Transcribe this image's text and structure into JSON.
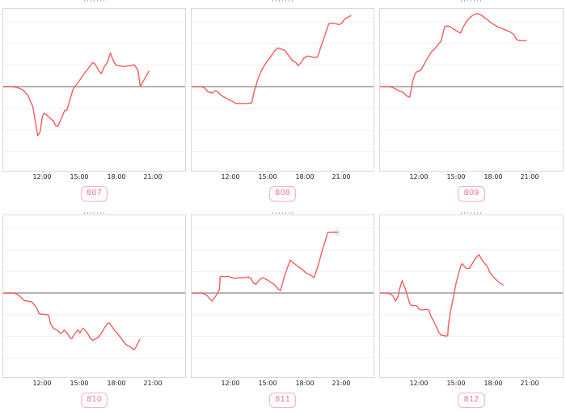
{
  "axis": {
    "tick_labels": [
      "12:00",
      "15:00",
      "18:00",
      "21:00"
    ],
    "tick_hours": [
      12,
      15,
      18,
      21
    ]
  },
  "colors": {
    "line": "#f45b5b",
    "zero_line": "#9a9a9a",
    "grid": "#f0f0f0",
    "border": "#d9d9d9",
    "badge_border": "#f8afc8",
    "badge_text": "#ee7ba2",
    "end_marker": "#ececec",
    "tick_text": "#222222"
  },
  "chart_data": [
    {
      "type": "line",
      "name": "807",
      "x_range_hours": [
        9,
        23.9
      ],
      "x_ticks": [
        "12:00",
        "15:00",
        "18:00",
        "21:00"
      ],
      "y_unit": "relative (pct of plot height vs zero baseline)",
      "baseline": 0,
      "grid": true,
      "points": [
        [
          9.0,
          0
        ],
        [
          9.7,
          0
        ],
        [
          10.1,
          -0.5
        ],
        [
          10.6,
          -2
        ],
        [
          11.0,
          -5.5
        ],
        [
          11.4,
          -12.4
        ],
        [
          11.8,
          -30.3
        ],
        [
          12.0,
          -27.9
        ],
        [
          12.2,
          -17.9
        ],
        [
          12.35,
          -16.4
        ],
        [
          12.6,
          -17.9
        ],
        [
          12.8,
          -19.4
        ],
        [
          13.1,
          -21.4
        ],
        [
          13.3,
          -24.4
        ],
        [
          13.45,
          -24.4
        ],
        [
          13.7,
          -20.4
        ],
        [
          14.0,
          -14.9
        ],
        [
          14.2,
          -14.4
        ],
        [
          14.7,
          -1.5
        ],
        [
          15.2,
          3.5
        ],
        [
          15.6,
          8
        ],
        [
          16.0,
          11.9
        ],
        [
          16.3,
          14.9
        ],
        [
          16.5,
          13.9
        ],
        [
          16.8,
          10
        ],
        [
          17.0,
          8
        ],
        [
          17.25,
          12.4
        ],
        [
          17.5,
          14.9
        ],
        [
          17.75,
          20.9
        ],
        [
          18.0,
          15.9
        ],
        [
          18.2,
          13.4
        ],
        [
          18.8,
          12.4
        ],
        [
          19.3,
          12.9
        ],
        [
          19.7,
          13.4
        ],
        [
          20.0,
          10.4
        ],
        [
          20.2,
          0
        ],
        [
          20.9,
          9.5
        ]
      ]
    },
    {
      "type": "line",
      "name": "808",
      "x_range_hours": [
        9,
        23.9
      ],
      "x_ticks": [
        "12:00",
        "15:00",
        "18:00",
        "21:00"
      ],
      "y_unit": "relative (pct of plot height vs zero baseline)",
      "baseline": 0,
      "grid": true,
      "points": [
        [
          9.0,
          0
        ],
        [
          9.7,
          0
        ],
        [
          10.0,
          -0.5
        ],
        [
          10.3,
          -3
        ],
        [
          10.65,
          -4
        ],
        [
          10.9,
          -2.5
        ],
        [
          11.1,
          -3
        ],
        [
          11.4,
          -5.5
        ],
        [
          11.9,
          -7.5
        ],
        [
          12.3,
          -9
        ],
        [
          12.6,
          -10.4
        ],
        [
          13.1,
          -10.4
        ],
        [
          13.6,
          -10.4
        ],
        [
          13.9,
          -10
        ],
        [
          14.1,
          -3
        ],
        [
          14.4,
          4.5
        ],
        [
          14.7,
          10
        ],
        [
          15.05,
          14.4
        ],
        [
          15.4,
          17.9
        ],
        [
          15.8,
          22.4
        ],
        [
          16.05,
          23.9
        ],
        [
          16.25,
          23.4
        ],
        [
          16.6,
          22.4
        ],
        [
          16.9,
          19.4
        ],
        [
          17.2,
          16.4
        ],
        [
          17.5,
          14.9
        ],
        [
          17.7,
          12.9
        ],
        [
          17.95,
          14.9
        ],
        [
          18.2,
          17.9
        ],
        [
          18.5,
          18.9
        ],
        [
          18.8,
          18.4
        ],
        [
          19.1,
          17.9
        ],
        [
          19.3,
          18.4
        ],
        [
          19.55,
          24.4
        ],
        [
          19.85,
          30.8
        ],
        [
          20.2,
          38.8
        ],
        [
          20.45,
          39.3
        ],
        [
          20.8,
          38.8
        ],
        [
          21.05,
          38.3
        ],
        [
          21.3,
          39.3
        ],
        [
          21.5,
          41.8
        ],
        [
          22.0,
          43.8
        ]
      ]
    },
    {
      "type": "line",
      "name": "809",
      "x_range_hours": [
        9,
        23.9
      ],
      "x_ticks": [
        "12:00",
        "15:00",
        "18:00",
        "21:00"
      ],
      "y_unit": "relative (pct of plot height vs zero baseline)",
      "baseline": 0,
      "grid": true,
      "points": [
        [
          9.0,
          0
        ],
        [
          9.7,
          0
        ],
        [
          10.0,
          -0.5
        ],
        [
          10.3,
          -1.7
        ],
        [
          10.6,
          -2.7
        ],
        [
          10.9,
          -3.8
        ],
        [
          11.2,
          -6
        ],
        [
          11.4,
          -6.5
        ],
        [
          11.65,
          3.5
        ],
        [
          11.85,
          8.1
        ],
        [
          12.0,
          9.3
        ],
        [
          12.25,
          9.8
        ],
        [
          12.4,
          11.4
        ],
        [
          12.85,
          17.6
        ],
        [
          13.2,
          21.7
        ],
        [
          13.4,
          23
        ],
        [
          13.75,
          26.4
        ],
        [
          13.95,
          28
        ],
        [
          14.25,
          37
        ],
        [
          14.45,
          37.5
        ],
        [
          14.7,
          37
        ],
        [
          14.9,
          36
        ],
        [
          15.15,
          34.7
        ],
        [
          15.4,
          33.7
        ],
        [
          15.55,
          33
        ],
        [
          15.8,
          37.5
        ],
        [
          16.15,
          41.6
        ],
        [
          16.45,
          43.6
        ],
        [
          16.7,
          44.8
        ],
        [
          16.95,
          45.1
        ],
        [
          17.2,
          44.4
        ],
        [
          17.45,
          42.9
        ],
        [
          17.75,
          41.3
        ],
        [
          17.95,
          39.9
        ],
        [
          18.2,
          38.6
        ],
        [
          18.45,
          37.5
        ],
        [
          18.8,
          36.3
        ],
        [
          19.1,
          35.3
        ],
        [
          19.45,
          34.2
        ],
        [
          19.65,
          33.5
        ],
        [
          19.9,
          32
        ],
        [
          20.1,
          29.2
        ],
        [
          20.3,
          28.4
        ],
        [
          20.9,
          28.4
        ]
      ]
    },
    {
      "type": "line",
      "name": "810",
      "x_range_hours": [
        9,
        23.9
      ],
      "x_ticks": [
        "12:00",
        "15:00",
        "18:00",
        "21:00"
      ],
      "y_unit": "relative (pct of plot height vs zero baseline)",
      "baseline": 0,
      "grid": true,
      "points": [
        [
          9.0,
          0
        ],
        [
          9.9,
          0
        ],
        [
          10.3,
          -1.7
        ],
        [
          10.55,
          -3.6
        ],
        [
          10.8,
          -5
        ],
        [
          10.9,
          -4.6
        ],
        [
          11.1,
          -5.3
        ],
        [
          11.3,
          -5.3
        ],
        [
          11.55,
          -7.5
        ],
        [
          11.75,
          -9.6
        ],
        [
          11.9,
          -12.6
        ],
        [
          12.1,
          -13.1
        ],
        [
          12.3,
          -13.1
        ],
        [
          12.55,
          -13.3
        ],
        [
          12.7,
          -13.6
        ],
        [
          12.85,
          -19.1
        ],
        [
          13.1,
          -21.9
        ],
        [
          13.3,
          -22.6
        ],
        [
          13.5,
          -23.5
        ],
        [
          13.65,
          -24.9
        ],
        [
          13.8,
          -24.5
        ],
        [
          13.95,
          -22.9
        ],
        [
          14.1,
          -23.7
        ],
        [
          14.3,
          -25.7
        ],
        [
          14.45,
          -27.7
        ],
        [
          14.6,
          -28.2
        ],
        [
          14.75,
          -26
        ],
        [
          14.95,
          -24.2
        ],
        [
          15.1,
          -22.7
        ],
        [
          15.25,
          -24.7
        ],
        [
          15.45,
          -22.2
        ],
        [
          15.55,
          -21.9
        ],
        [
          15.7,
          -23.1
        ],
        [
          15.9,
          -25
        ],
        [
          16.1,
          -27.9
        ],
        [
          16.3,
          -29.2
        ],
        [
          16.5,
          -28.5
        ],
        [
          16.7,
          -27.7
        ],
        [
          16.85,
          -26.5
        ],
        [
          17.1,
          -23.7
        ],
        [
          17.3,
          -21.1
        ],
        [
          17.5,
          -18.9
        ],
        [
          17.65,
          -18.4
        ],
        [
          17.85,
          -20.4
        ],
        [
          18.05,
          -22.6
        ],
        [
          18.3,
          -24.7
        ],
        [
          18.5,
          -26.7
        ],
        [
          18.7,
          -28.7
        ],
        [
          18.95,
          -31.3
        ],
        [
          19.15,
          -32.5
        ],
        [
          19.35,
          -33
        ],
        [
          19.5,
          -34.2
        ],
        [
          19.7,
          -35
        ],
        [
          19.85,
          -33.3
        ],
        [
          20.05,
          -30.2
        ],
        [
          20.15,
          -28.7
        ]
      ]
    },
    {
      "type": "line",
      "name": "811",
      "x_range_hours": [
        9,
        23.9
      ],
      "x_ticks": [
        "12:00",
        "15:00",
        "18:00",
        "21:00"
      ],
      "y_unit": "relative (pct of plot height vs zero baseline)",
      "baseline": 0,
      "grid": true,
      "end_marker": true,
      "points": [
        [
          9.0,
          0
        ],
        [
          9.8,
          0
        ],
        [
          10.0,
          -0.5
        ],
        [
          10.25,
          -1.5
        ],
        [
          10.45,
          -3.5
        ],
        [
          10.65,
          -5
        ],
        [
          10.9,
          -2.5
        ],
        [
          11.1,
          0
        ],
        [
          11.25,
          2
        ],
        [
          11.32,
          10
        ],
        [
          11.45,
          10.4
        ],
        [
          11.65,
          10
        ],
        [
          11.9,
          10.4
        ],
        [
          12.1,
          10
        ],
        [
          12.3,
          9.5
        ],
        [
          12.55,
          9
        ],
        [
          12.75,
          9.5
        ],
        [
          12.95,
          9.5
        ],
        [
          13.2,
          9.5
        ],
        [
          13.4,
          9.5
        ],
        [
          13.6,
          10
        ],
        [
          13.85,
          9
        ],
        [
          14.05,
          6
        ],
        [
          14.25,
          5.5
        ],
        [
          14.4,
          7
        ],
        [
          14.6,
          8.5
        ],
        [
          14.8,
          9.5
        ],
        [
          14.95,
          9
        ],
        [
          15.2,
          8
        ],
        [
          15.4,
          7
        ],
        [
          15.6,
          6
        ],
        [
          15.85,
          4.5
        ],
        [
          16.05,
          2.5
        ],
        [
          16.25,
          1.5
        ],
        [
          16.6,
          11
        ],
        [
          17.05,
          20.4
        ],
        [
          17.35,
          18.4
        ],
        [
          17.7,
          16.4
        ],
        [
          18.0,
          14.9
        ],
        [
          18.35,
          12.4
        ],
        [
          18.65,
          11.4
        ],
        [
          18.85,
          10.4
        ],
        [
          19.0,
          9.5
        ],
        [
          19.35,
          17.4
        ],
        [
          19.65,
          25.9
        ],
        [
          20.0,
          34.3
        ],
        [
          20.1,
          37.3
        ],
        [
          20.3,
          37.5
        ],
        [
          20.9,
          37.5
        ]
      ]
    },
    {
      "type": "line",
      "name": "812",
      "x_range_hours": [
        9,
        23.9
      ],
      "x_ticks": [
        "12:00",
        "15:00",
        "18:00",
        "21:00"
      ],
      "y_unit": "relative (pct of plot height vs zero baseline)",
      "baseline": 0,
      "grid": true,
      "points": [
        [
          9.0,
          0
        ],
        [
          9.6,
          0
        ],
        [
          9.85,
          -0.6
        ],
        [
          10.05,
          -2
        ],
        [
          10.25,
          -5
        ],
        [
          10.45,
          -2
        ],
        [
          10.6,
          3
        ],
        [
          10.78,
          7.6
        ],
        [
          11.0,
          3.5
        ],
        [
          11.15,
          0
        ],
        [
          11.4,
          -6.5
        ],
        [
          11.55,
          -7.8
        ],
        [
          11.75,
          -7.6
        ],
        [
          11.95,
          -7.8
        ],
        [
          12.15,
          -9.8
        ],
        [
          12.35,
          -10.4
        ],
        [
          12.55,
          -10.4
        ],
        [
          12.75,
          -10
        ],
        [
          12.95,
          -10.4
        ],
        [
          13.1,
          -13.9
        ],
        [
          13.35,
          -17.3
        ],
        [
          13.55,
          -20.5
        ],
        [
          13.75,
          -23.9
        ],
        [
          13.95,
          -26
        ],
        [
          14.15,
          -26.3
        ],
        [
          14.35,
          -26.6
        ],
        [
          14.5,
          -26.3
        ],
        [
          14.55,
          -19.7
        ],
        [
          14.72,
          -11.4
        ],
        [
          14.95,
          -3.1
        ],
        [
          15.15,
          5.1
        ],
        [
          15.4,
          12.6
        ],
        [
          15.6,
          17.6
        ],
        [
          15.7,
          18.1
        ],
        [
          15.85,
          16.4
        ],
        [
          16.05,
          15.1
        ],
        [
          16.25,
          15.3
        ],
        [
          16.5,
          18.1
        ],
        [
          16.75,
          21.4
        ],
        [
          17.05,
          23.7
        ],
        [
          17.25,
          20.9
        ],
        [
          17.45,
          18.8
        ],
        [
          17.7,
          16.8
        ],
        [
          17.95,
          12.6
        ],
        [
          18.2,
          10.1
        ],
        [
          18.4,
          8.5
        ],
        [
          18.65,
          6.8
        ],
        [
          18.9,
          5.5
        ],
        [
          19.0,
          5
        ]
      ]
    }
  ]
}
